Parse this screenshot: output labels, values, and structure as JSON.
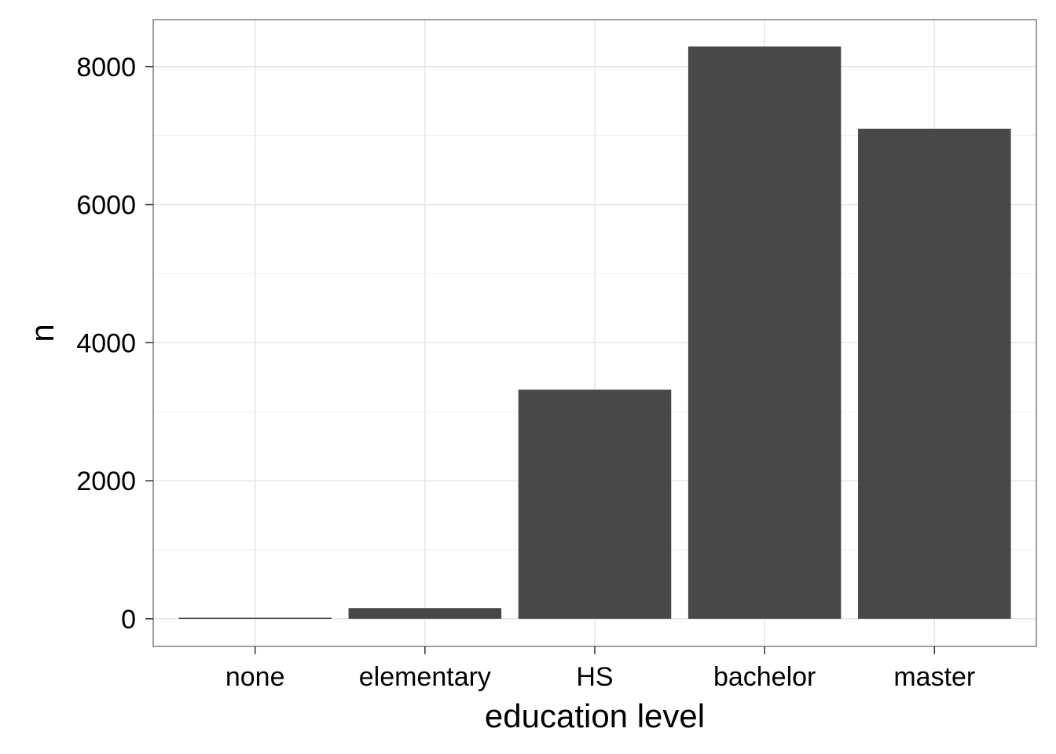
{
  "chart_data": {
    "type": "bar",
    "title": "",
    "xlabel": "education level",
    "ylabel": "n",
    "categories": [
      "none",
      "elementary",
      "HS",
      "bachelor",
      "master"
    ],
    "values": [
      15,
      155,
      3320,
      8290,
      7100
    ],
    "ylim": [
      -400,
      8680
    ],
    "yticks": [
      0,
      2000,
      4000,
      6000,
      8000
    ],
    "ytick_labels": [
      "0",
      "2000",
      "4000",
      "6000",
      "8000"
    ],
    "grid": true,
    "legend": "none",
    "colors": {
      "bar": "#484848",
      "panel_border": "#7f7f7f",
      "grid_major": "#e5e5e5",
      "grid_minor": "#f2f2f2",
      "tick": "#333333"
    }
  }
}
